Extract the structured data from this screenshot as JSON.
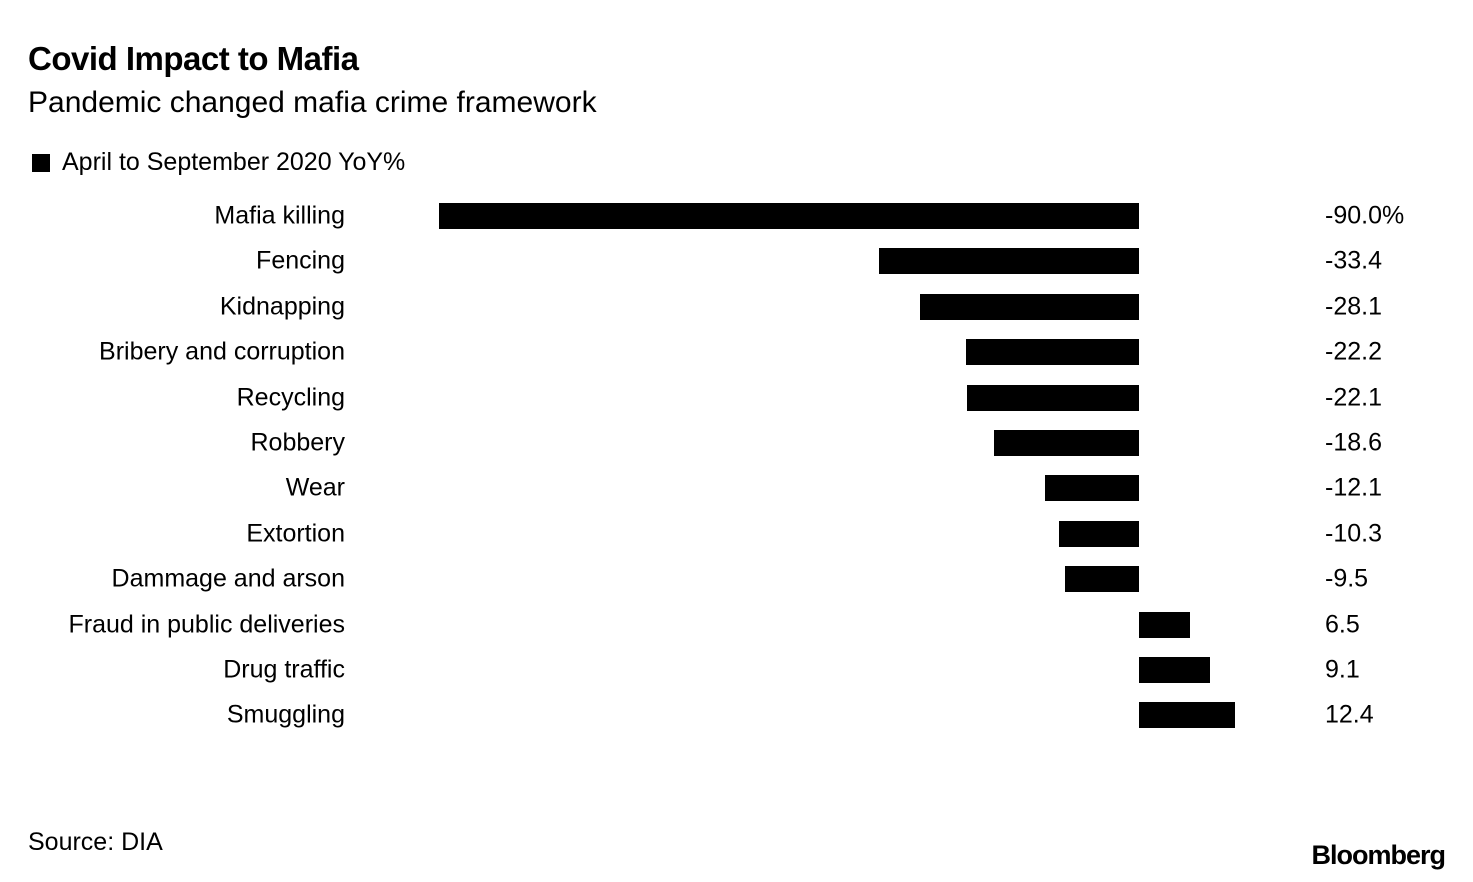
{
  "chart_data": {
    "type": "bar",
    "orientation": "horizontal",
    "title": "Covid Impact to Mafia",
    "subtitle": "Pandemic changed mafia crime framework",
    "legend": [
      "April to September 2020 YoY%"
    ],
    "legend_placement": "top-left",
    "categories": [
      "Mafia killing",
      "Fencing",
      "Kidnapping",
      "Bribery and corruption",
      "Recycling",
      "Robbery",
      "Wear",
      "Extortion",
      "Dammage and arson",
      "Fraud in public deliveries",
      "Drug traffic",
      "Smuggling"
    ],
    "values": [
      -90.0,
      -33.4,
      -28.1,
      -22.2,
      -22.1,
      -18.6,
      -12.1,
      -10.3,
      -9.5,
      6.5,
      9.1,
      12.4
    ],
    "value_labels": [
      "-90.0%",
      "-33.4",
      "-28.1",
      "-22.2",
      "-22.1",
      "-18.6",
      "-12.1",
      "-10.3",
      "-9.5",
      "6.5",
      "9.1",
      "12.4"
    ],
    "xlim": [
      -90,
      12.4
    ],
    "grid": false,
    "bar_color": "#000000",
    "source": "Source: DIA",
    "brand": "Bloomberg"
  }
}
